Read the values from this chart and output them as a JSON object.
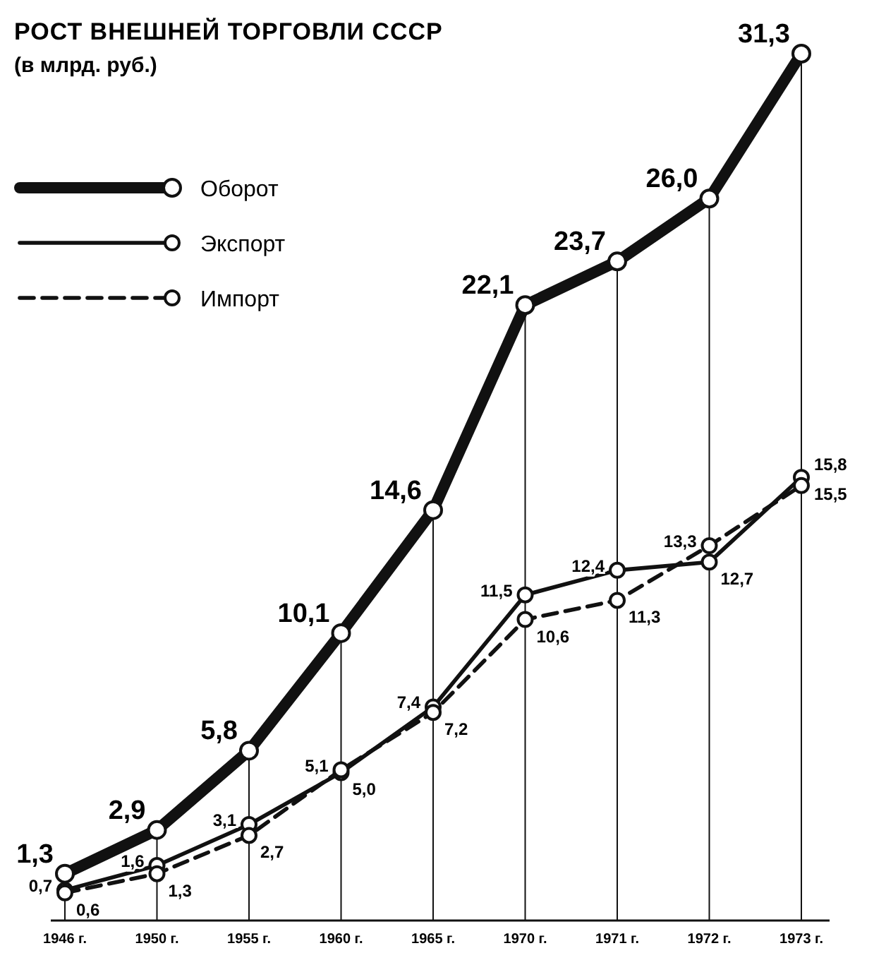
{
  "chart_data": {
    "type": "line",
    "title": "РОСТ ВНЕШНЕЙ ТОРГОВЛИ СССР",
    "subtitle": "(в млрд. руб.)",
    "categories": [
      "1946 г.",
      "1950 г.",
      "1955 г.",
      "1960 г.",
      "1965 г.",
      "1970 г.",
      "1971 г.",
      "1972 г.",
      "1973 г."
    ],
    "series": [
      {
        "name": "Оборот",
        "color": "#111111",
        "line_style": "solid",
        "values": [
          1.3,
          2.9,
          5.8,
          10.1,
          14.6,
          22.1,
          23.7,
          26.0,
          31.3
        ],
        "value_labels": [
          "1,3",
          "2,9",
          "5,8",
          "10,1",
          "14,6",
          "22,1",
          "23,7",
          "26,0",
          "31,3"
        ]
      },
      {
        "name": "Экспорт",
        "color": "#111111",
        "line_style": "solid",
        "values": [
          0.7,
          1.6,
          3.1,
          5.0,
          7.4,
          11.5,
          12.4,
          12.7,
          15.8
        ],
        "value_labels": [
          "0,7",
          "1,6",
          "3,1",
          "5,0",
          "7,4",
          "11,5",
          "12,4",
          "12,7",
          "15,8"
        ]
      },
      {
        "name": "Импорт",
        "color": "#111111",
        "line_style": "dashed",
        "values": [
          0.6,
          1.3,
          2.7,
          5.1,
          7.2,
          10.6,
          11.3,
          13.3,
          15.5
        ],
        "value_labels": [
          "0,6",
          "1,3",
          "2,7",
          "5,1",
          "7,2",
          "10,6",
          "11,3",
          "13,3",
          "15,5"
        ]
      }
    ],
    "marker": "circle",
    "grid": "x",
    "legend": "top left"
  }
}
